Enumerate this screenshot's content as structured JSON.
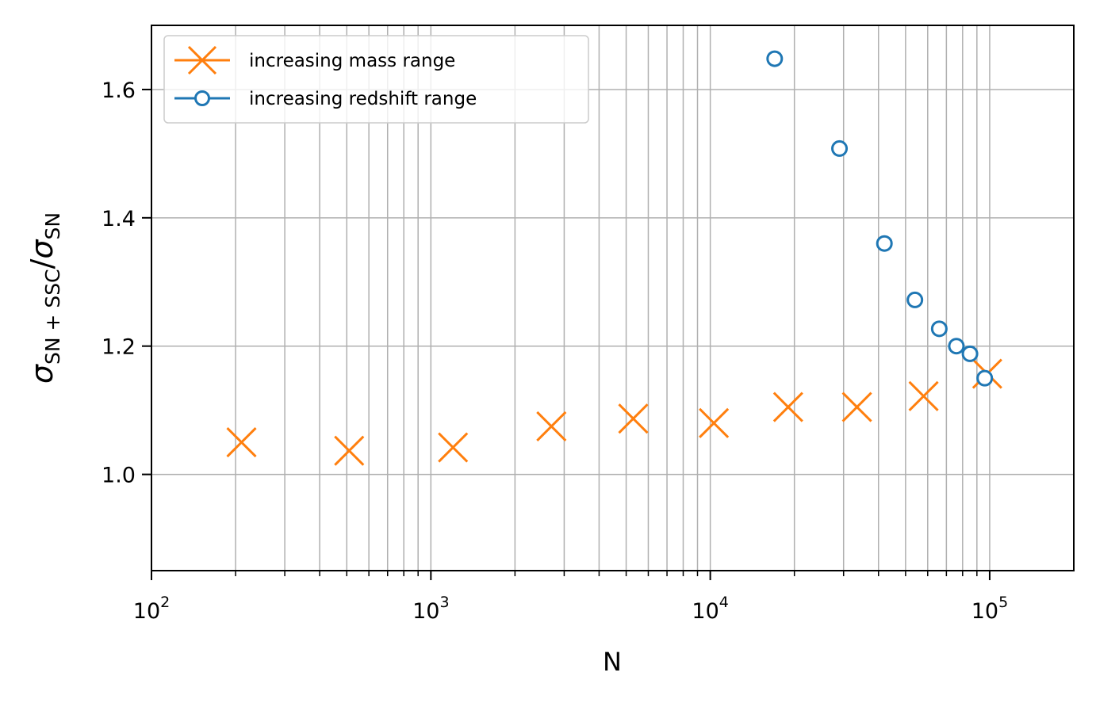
{
  "chart_data": {
    "type": "scatter",
    "xscale": "log",
    "xlim": [
      100,
      200000
    ],
    "ylim": [
      0.85,
      1.7
    ],
    "xlabel": "N",
    "ylabel": {
      "base1": "σ",
      "sub1": "SN + SSC",
      "slash": "/",
      "base2": "σ",
      "sub2": "SN"
    },
    "x_ticks": [
      {
        "value": 100,
        "base": "10",
        "exp": "2"
      },
      {
        "value": 1000,
        "base": "10",
        "exp": "3"
      },
      {
        "value": 10000,
        "base": "10",
        "exp": "4"
      },
      {
        "value": 100000,
        "base": "10",
        "exp": "5"
      }
    ],
    "y_ticks": [
      {
        "value": 1.0,
        "label": "1.0"
      },
      {
        "value": 1.2,
        "label": "1.2"
      },
      {
        "value": 1.4,
        "label": "1.4"
      },
      {
        "value": 1.6,
        "label": "1.6"
      }
    ],
    "grid": true,
    "legend_position": "top-left",
    "series": [
      {
        "name": "increasing mass range",
        "marker": "x",
        "color": "#ff7f0e",
        "x": [
          210,
          510,
          1200,
          2700,
          5300,
          10300,
          19000,
          33500,
          58000,
          98000
        ],
        "y": [
          1.05,
          1.037,
          1.042,
          1.075,
          1.087,
          1.08,
          1.105,
          1.105,
          1.122,
          1.157
        ]
      },
      {
        "name": "increasing redshift range",
        "marker": "o",
        "color": "#1f77b4",
        "x": [
          17000,
          29000,
          42000,
          54000,
          66000,
          76000,
          85000,
          96000
        ],
        "y": [
          1.648,
          1.508,
          1.36,
          1.272,
          1.227,
          1.2,
          1.188,
          1.15
        ]
      }
    ]
  }
}
